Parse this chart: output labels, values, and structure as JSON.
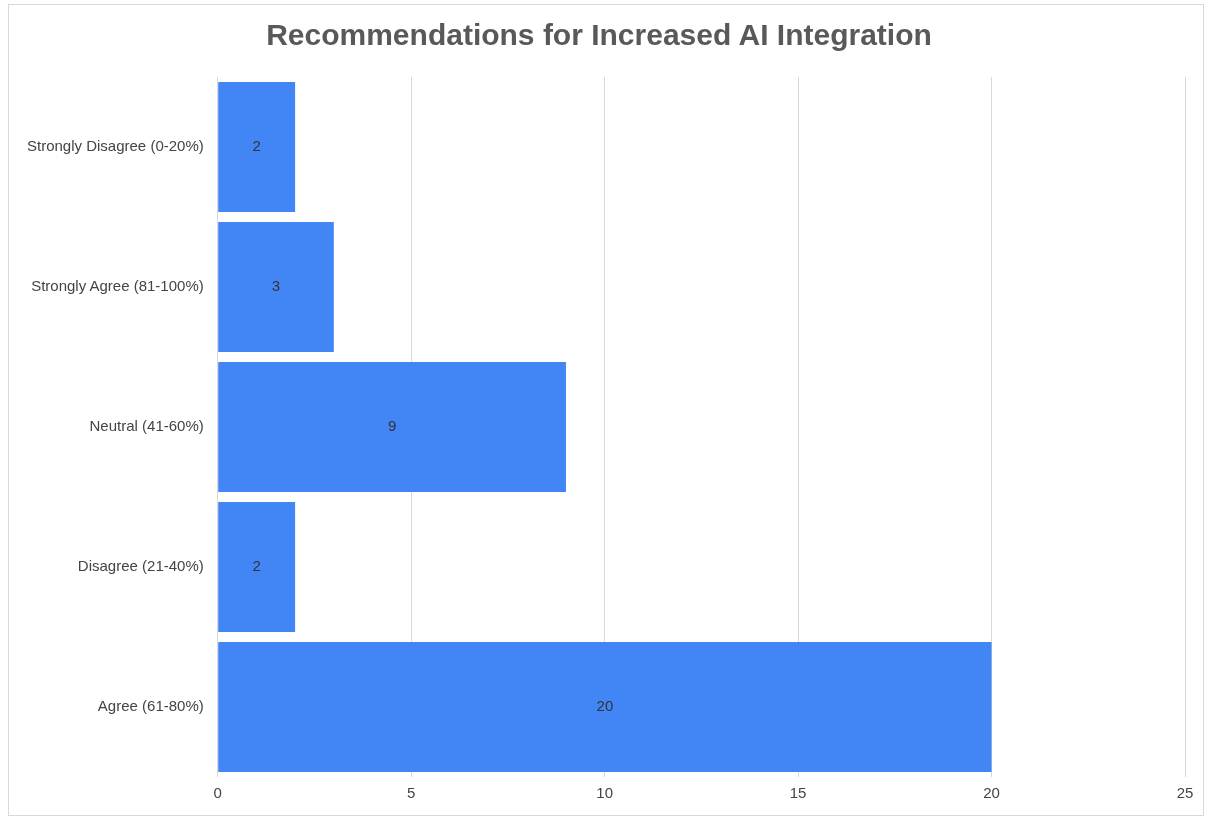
{
  "chart_data": {
    "type": "bar",
    "orientation": "horizontal",
    "title": "Recommendations for Increased AI Integration",
    "categories": [
      "Strongly Disagree (0-20%)",
      "Strongly Agree (81-100%)",
      "Neutral (41-60%)",
      "Disagree (21-40%)",
      "Agree (61-80%)"
    ],
    "values": [
      2,
      3,
      9,
      2,
      20
    ],
    "color": "#4285f4",
    "xlim": [
      0,
      25
    ],
    "xticks": [
      0,
      5,
      10,
      15,
      20,
      25
    ],
    "grid": "x",
    "data_labels": true,
    "legend": false
  }
}
